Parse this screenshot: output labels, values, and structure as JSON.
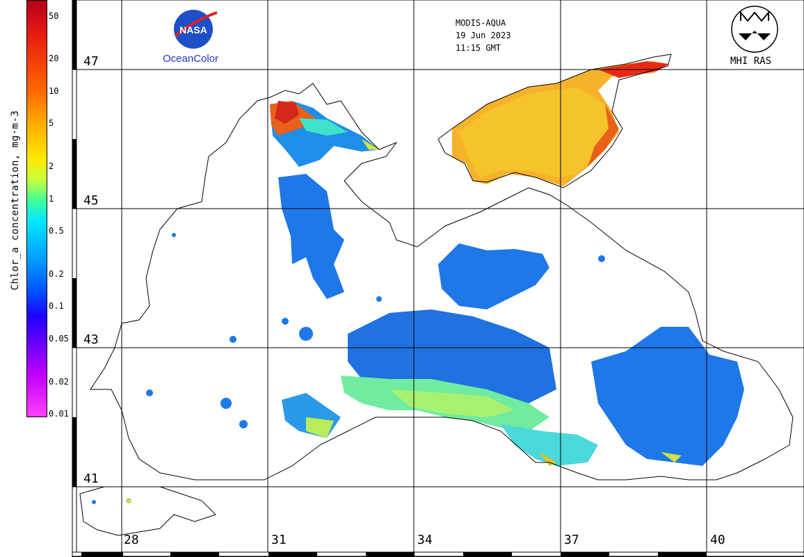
{
  "colorbar": {
    "title": "Chlor_a concentration, mg·m-3",
    "ticks": [
      {
        "label": "50",
        "value": 50
      },
      {
        "label": "20",
        "value": 20
      },
      {
        "label": "10",
        "value": 10
      },
      {
        "label": "5",
        "value": 5
      },
      {
        "label": "2",
        "value": 2
      },
      {
        "label": "1",
        "value": 1
      },
      {
        "label": "0.5",
        "value": 0.5
      },
      {
        "label": "0.2",
        "value": 0.2
      },
      {
        "label": "0.1",
        "value": 0.1
      },
      {
        "label": "0.05",
        "value": 0.05
      },
      {
        "label": "0.02",
        "value": 0.02
      },
      {
        "label": "0.01",
        "value": 0.01
      }
    ],
    "scale": "log"
  },
  "header": {
    "sensor": "MODIS-AQUA",
    "date": "19 Jun 2023",
    "time": "11:15 GMT"
  },
  "logos": {
    "left_name": "NASA",
    "left_text": "OceanColor",
    "right_text": "MHI RAS"
  },
  "grid": {
    "lat_labels": [
      "47",
      "45",
      "43",
      "41"
    ],
    "lon_labels": [
      "28",
      "31",
      "34",
      "37",
      "40"
    ]
  },
  "colors": {
    "low": "#ff40ff",
    "mid_blue": "#1e78e8",
    "mid_green": "#7ef07a",
    "high": "#e81a12",
    "coast": "#000000"
  }
}
